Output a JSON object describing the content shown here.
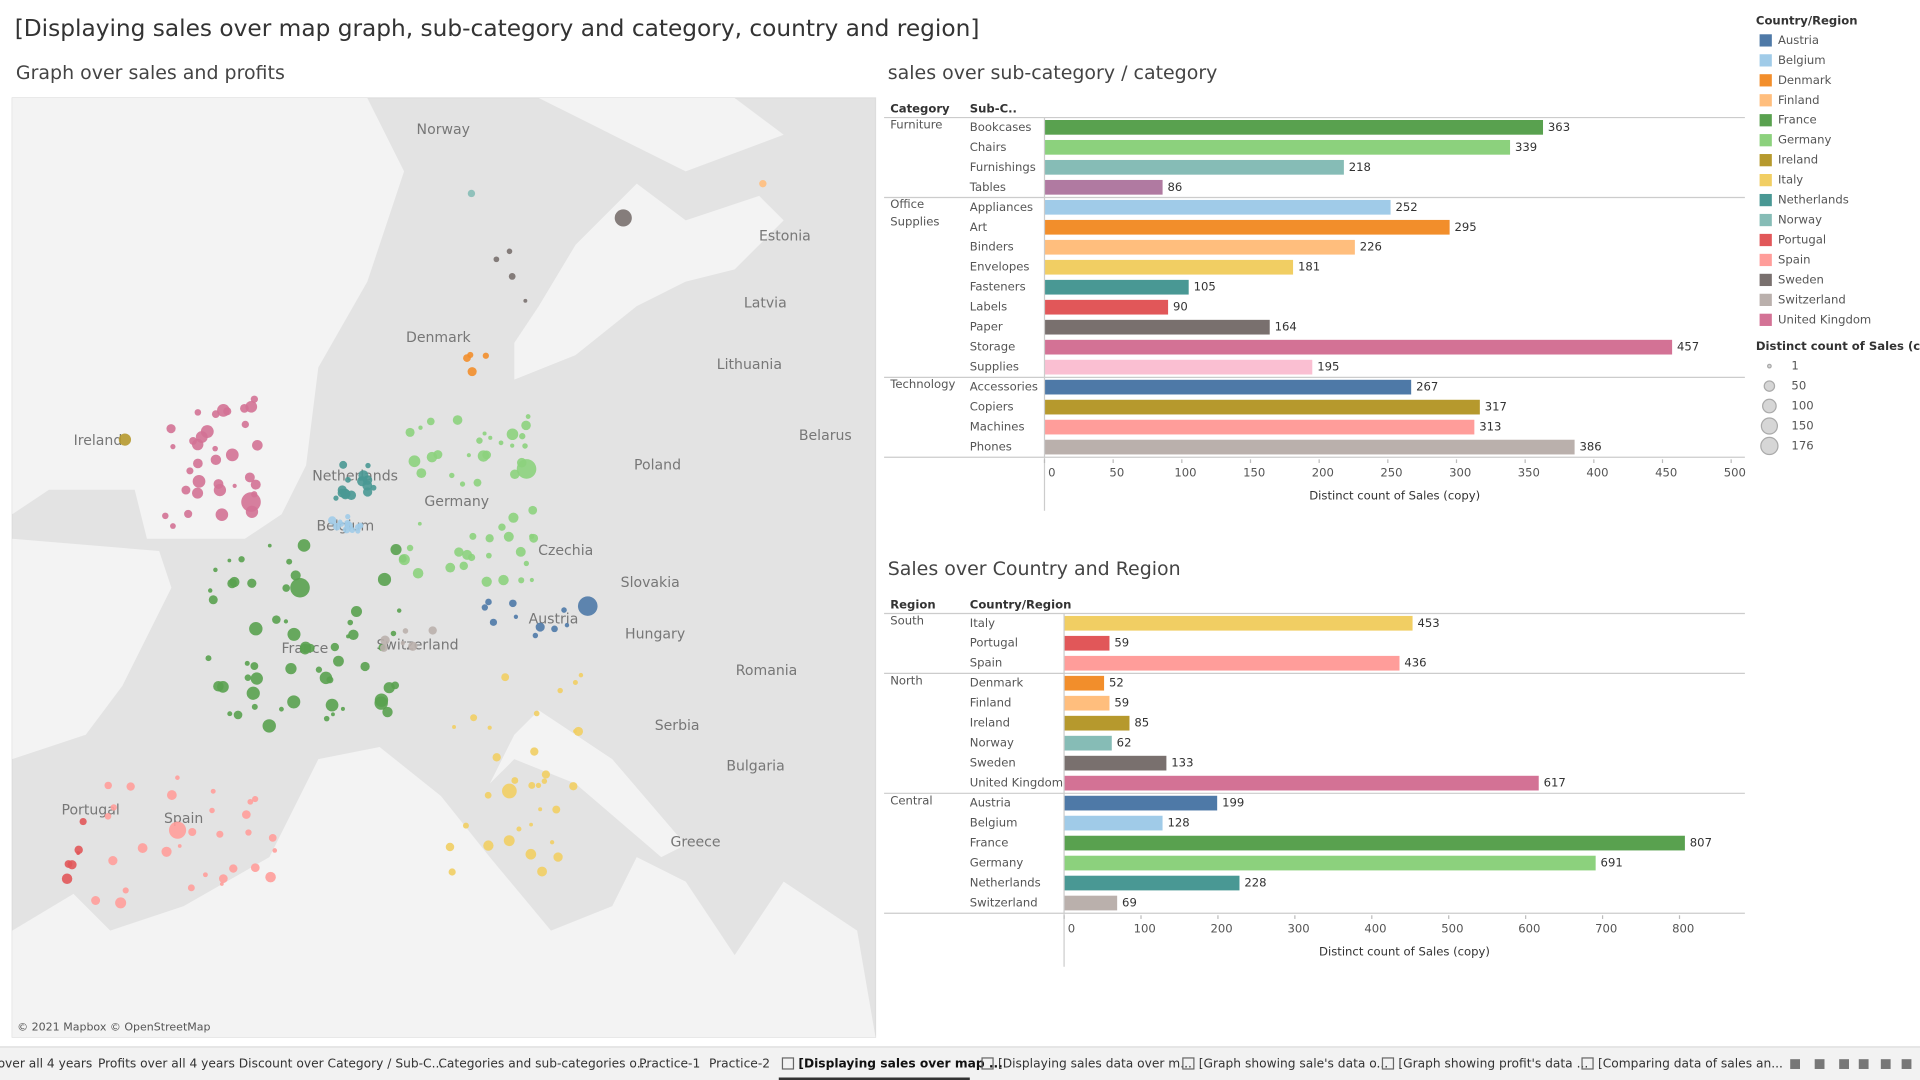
{
  "header": {
    "title": "[Displaying sales over map graph, sub-category and category, country and region]"
  },
  "map": {
    "title": "Graph over sales and profits",
    "labels": [
      "Norway",
      "Estonia",
      "Latvia",
      "Denmark",
      "Lithuania",
      "Belarus",
      "Poland",
      "Ireland",
      "Netherlands",
      "Germany",
      "Belgium",
      "Czechia",
      "Slovakia",
      "Austria",
      "France",
      "Switzerland",
      "Hungary",
      "Romania",
      "Serbia",
      "Bulgaria",
      "Portugal",
      "Spain",
      "Greece"
    ],
    "attribution": "© 2021 Mapbox © OpenStreetMap"
  },
  "chart_data": [
    {
      "type": "bar",
      "title": "sales over sub-category / category",
      "headers": [
        "Category",
        "Sub-C.."
      ],
      "groups": [
        {
          "name": "Furniture",
          "categories": [
            "Bookcases",
            "Chairs",
            "Furnishings",
            "Tables"
          ],
          "values": [
            363,
            339,
            218,
            86
          ],
          "colors": [
            "#59a14f",
            "#8cd17d",
            "#86bcb6",
            "#b07aa1"
          ]
        },
        {
          "name": "Office Supplies",
          "categories": [
            "Appliances",
            "Art",
            "Binders",
            "Envelopes",
            "Fasteners",
            "Labels",
            "Paper",
            "Storage",
            "Supplies"
          ],
          "values": [
            252,
            295,
            226,
            181,
            105,
            90,
            164,
            457,
            195
          ],
          "colors": [
            "#a0cbe8",
            "#f28e2b",
            "#ffbe7d",
            "#f1ce63",
            "#499894",
            "#e15759",
            "#79706e",
            "#d37295",
            "#fabfd2"
          ]
        },
        {
          "name": "Technology",
          "categories": [
            "Accessories",
            "Copiers",
            "Machines",
            "Phones"
          ],
          "values": [
            267,
            317,
            313,
            386
          ],
          "colors": [
            "#4e79a7",
            "#b6992d",
            "#ff9d9a",
            "#bab0ac"
          ]
        }
      ],
      "xlabel": "Distinct count of Sales (copy)",
      "xlim": [
        0,
        510
      ],
      "xticks": [
        0,
        50,
        100,
        150,
        200,
        250,
        300,
        350,
        400,
        450,
        500
      ]
    },
    {
      "type": "bar",
      "title": "Sales over Country and Region",
      "headers": [
        "Region",
        "Country/Region"
      ],
      "groups": [
        {
          "name": "South",
          "categories": [
            "Italy",
            "Portugal",
            "Spain"
          ],
          "values": [
            453,
            59,
            436
          ],
          "colors": [
            "#f1ce63",
            "#e15759",
            "#ff9d9a"
          ]
        },
        {
          "name": "North",
          "categories": [
            "Denmark",
            "Finland",
            "Ireland",
            "Norway",
            "Sweden",
            "United Kingdom"
          ],
          "values": [
            52,
            59,
            85,
            62,
            133,
            617
          ],
          "colors": [
            "#f28e2b",
            "#ffbe7d",
            "#b6992d",
            "#86bcb6",
            "#79706e",
            "#d37295"
          ]
        },
        {
          "name": "Central",
          "categories": [
            "Austria",
            "Belgium",
            "France",
            "Germany",
            "Netherlands",
            "Switzerland"
          ],
          "values": [
            199,
            128,
            807,
            691,
            228,
            69
          ],
          "colors": [
            "#4e79a7",
            "#a0cbe8",
            "#59a14f",
            "#8cd17d",
            "#499894",
            "#bab0ac"
          ]
        }
      ],
      "xlabel": "Distinct count of Sales (copy)",
      "xlim": [
        0,
        885
      ],
      "xticks": [
        0,
        100,
        200,
        300,
        400,
        500,
        600,
        700,
        800
      ]
    }
  ],
  "legend": {
    "color": {
      "title": "Country/Region",
      "items": [
        {
          "name": "Austria",
          "color": "#4e79a7"
        },
        {
          "name": "Belgium",
          "color": "#a0cbe8"
        },
        {
          "name": "Denmark",
          "color": "#f28e2b"
        },
        {
          "name": "Finland",
          "color": "#ffbe7d"
        },
        {
          "name": "France",
          "color": "#59a14f"
        },
        {
          "name": "Germany",
          "color": "#8cd17d"
        },
        {
          "name": "Ireland",
          "color": "#b6992d"
        },
        {
          "name": "Italy",
          "color": "#f1ce63"
        },
        {
          "name": "Netherlands",
          "color": "#499894"
        },
        {
          "name": "Norway",
          "color": "#86bcb6"
        },
        {
          "name": "Portugal",
          "color": "#e15759"
        },
        {
          "name": "Spain",
          "color": "#ff9d9a"
        },
        {
          "name": "Sweden",
          "color": "#79706e"
        },
        {
          "name": "Switzerland",
          "color": "#bab0ac"
        },
        {
          "name": "United Kingdom",
          "color": "#d37295"
        }
      ]
    },
    "size": {
      "title": "Distinct count of Sales (c..",
      "values": [
        1,
        50,
        100,
        150,
        176
      ]
    }
  },
  "tabs": [
    {
      "label": "over all 4 years",
      "active": false
    },
    {
      "label": "Profits over all 4 years",
      "active": false
    },
    {
      "label": "Discount over Category / Sub-C...",
      "active": false
    },
    {
      "label": "Categories and sub-categories o...",
      "active": false
    },
    {
      "label": "Practice-1",
      "active": false
    },
    {
      "label": "Practice-2",
      "active": false
    },
    {
      "label": "[Displaying sales over map ...",
      "active": true
    },
    {
      "label": "[Displaying sales data over m...",
      "active": false
    },
    {
      "label": "[Graph showing sale's data o...",
      "active": false
    },
    {
      "label": "[Graph showing profit's data ...",
      "active": false
    },
    {
      "label": "[Comparing data of sales an...",
      "active": false
    }
  ]
}
